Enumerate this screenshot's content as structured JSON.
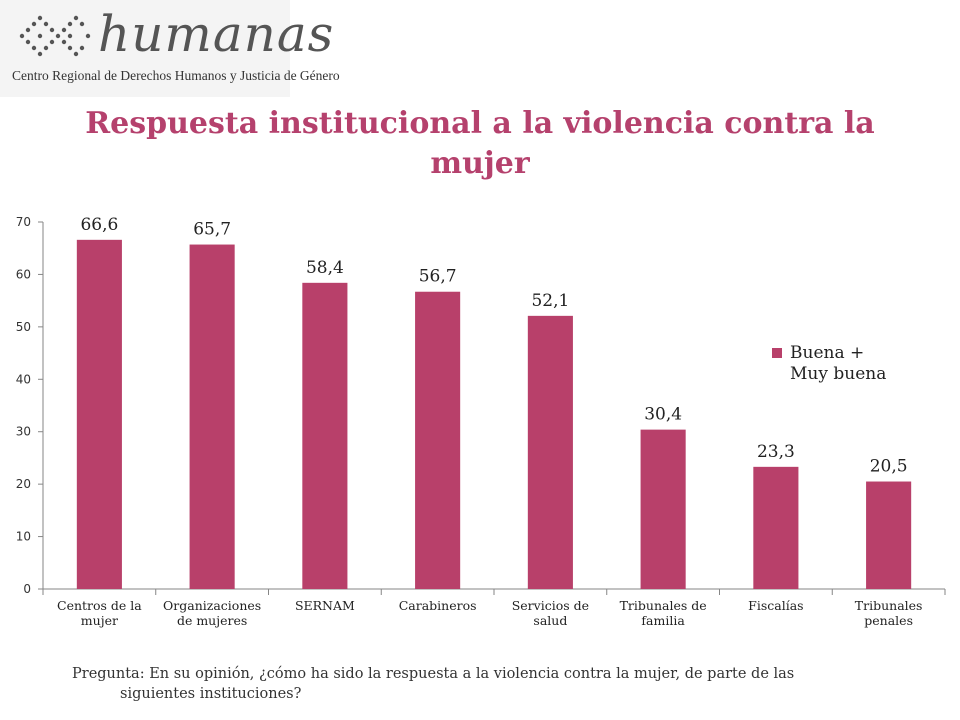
{
  "logo": {
    "name": "humanas",
    "tagline": "Centro Regional de Derechos Humanos y Justicia de Género"
  },
  "colors": {
    "accent": "#b5416d",
    "bar": "#b8406a"
  },
  "chart_data": {
    "type": "bar",
    "title": "Respuesta institucional a la violencia contra la mujer",
    "categories": [
      "Centros de la mujer",
      "Organizaciones de mujeres",
      "SERNAM",
      "Carabineros",
      "Servicios de salud",
      "Tribunales de familia",
      "Fiscalías",
      "Tribunales penales"
    ],
    "series": [
      {
        "name": "Buena + Muy buena",
        "values": [
          66.6,
          65.7,
          58.4,
          56.7,
          52.1,
          30.4,
          23.3,
          20.5
        ]
      }
    ],
    "data_labels": [
      "66,6",
      "65,7",
      "58,4",
      "56,7",
      "52,1",
      "30,4",
      "23,3",
      "20,5"
    ],
    "ylim": [
      0,
      70
    ],
    "yticks": [
      0,
      10,
      20,
      30,
      40,
      50,
      60,
      70
    ],
    "grid": false,
    "legend": "right"
  },
  "footnote": {
    "line1": "Pregunta: En su opinión, ¿cómo ha sido la respuesta a la violencia contra la mujer, de parte de las",
    "line2": "siguientes instituciones?"
  }
}
